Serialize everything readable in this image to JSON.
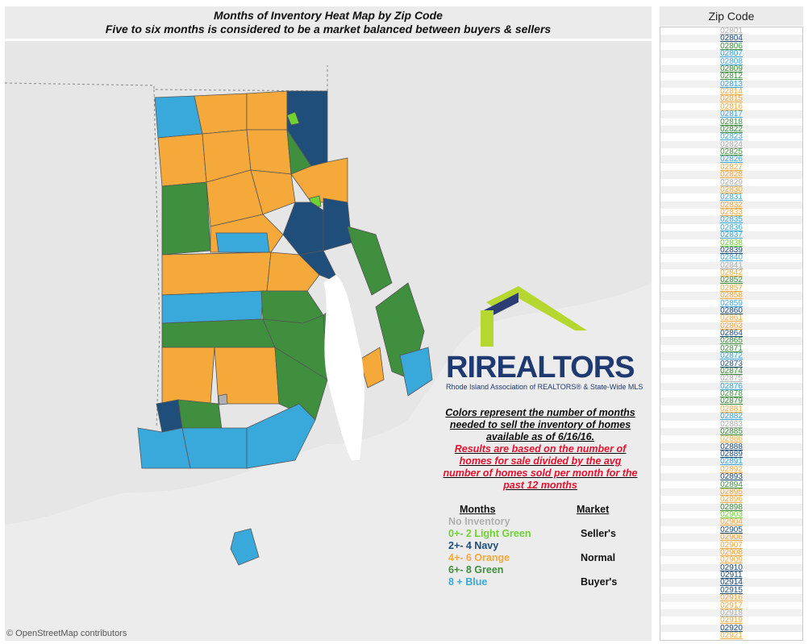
{
  "header": {
    "title": "Months of Inventory Heat Map by Zip Code",
    "subtitle": "Five to six months is considered to be a market balanced between buyers & sellers"
  },
  "map": {
    "attribution": "© OpenStreetMap contributors"
  },
  "logo": {
    "brand": "RIREALTORS",
    "tagline": "Rhode Island Association of REALTORS® & State-Wide MLS"
  },
  "note": {
    "line_black": "Colors represent the number of months needed to sell the inventory of homes available as of 6/16/16.",
    "line_red": "Results are based on the number of homes for sale divided by the avg number of homes sold per month for the past 12 months"
  },
  "legend": {
    "months_header": "Months",
    "market_header": "Market",
    "rows": [
      {
        "label": "No Inventory",
        "color": "#b0b0b0"
      },
      {
        "label": "0+- 2 Light Green",
        "color": "#6fd232"
      },
      {
        "label": "2+- 4 Navy",
        "color": "#1f4e7a"
      },
      {
        "label": "4+- 6 Orange",
        "color": "#f6a93b"
      },
      {
        "label": "6+- 8 Green",
        "color": "#3f8f3f"
      },
      {
        "label": "8 +     Blue",
        "color": "#39a9dc"
      }
    ],
    "markets": [
      "Seller's",
      "Normal",
      "Buyer's"
    ]
  },
  "colors": {
    "none": "#b0b0b0",
    "lightgreen": "#6fd232",
    "navy": "#1f4e7a",
    "orange": "#f6a93b",
    "green": "#3f8f3f",
    "blue": "#39a9dc"
  },
  "zip_panel": {
    "title": "Zip Code",
    "zips": [
      {
        "zip": "02801",
        "c": "none"
      },
      {
        "zip": "02804",
        "c": "navy"
      },
      {
        "zip": "02806",
        "c": "green"
      },
      {
        "zip": "02807",
        "c": "blue"
      },
      {
        "zip": "02808",
        "c": "blue"
      },
      {
        "zip": "02809",
        "c": "green"
      },
      {
        "zip": "02812",
        "c": "green"
      },
      {
        "zip": "02813",
        "c": "blue"
      },
      {
        "zip": "02814",
        "c": "orange"
      },
      {
        "zip": "02815",
        "c": "orange"
      },
      {
        "zip": "02816",
        "c": "orange"
      },
      {
        "zip": "02817",
        "c": "blue"
      },
      {
        "zip": "02818",
        "c": "green"
      },
      {
        "zip": "02822",
        "c": "green"
      },
      {
        "zip": "02823",
        "c": "blue"
      },
      {
        "zip": "02824",
        "c": "none"
      },
      {
        "zip": "02825",
        "c": "green"
      },
      {
        "zip": "02826",
        "c": "blue"
      },
      {
        "zip": "02827",
        "c": "orange"
      },
      {
        "zip": "02828",
        "c": "orange"
      },
      {
        "zip": "02829",
        "c": "none"
      },
      {
        "zip": "02830",
        "c": "orange"
      },
      {
        "zip": "02831",
        "c": "blue"
      },
      {
        "zip": "02832",
        "c": "orange"
      },
      {
        "zip": "02833",
        "c": "orange"
      },
      {
        "zip": "02835",
        "c": "blue"
      },
      {
        "zip": "02836",
        "c": "blue"
      },
      {
        "zip": "02837",
        "c": "blue"
      },
      {
        "zip": "02838",
        "c": "lightgreen"
      },
      {
        "zip": "02839",
        "c": "navy"
      },
      {
        "zip": "02840",
        "c": "blue"
      },
      {
        "zip": "02841",
        "c": "none"
      },
      {
        "zip": "02842",
        "c": "orange"
      },
      {
        "zip": "02852",
        "c": "green"
      },
      {
        "zip": "02857",
        "c": "orange"
      },
      {
        "zip": "02858",
        "c": "orange"
      },
      {
        "zip": "02859",
        "c": "blue"
      },
      {
        "zip": "02860",
        "c": "navy"
      },
      {
        "zip": "02861",
        "c": "orange"
      },
      {
        "zip": "02863",
        "c": "orange"
      },
      {
        "zip": "02864",
        "c": "navy"
      },
      {
        "zip": "02865",
        "c": "green"
      },
      {
        "zip": "02871",
        "c": "green"
      },
      {
        "zip": "02872",
        "c": "blue"
      },
      {
        "zip": "02873",
        "c": "navy"
      },
      {
        "zip": "02874",
        "c": "green"
      },
      {
        "zip": "02875",
        "c": "none"
      },
      {
        "zip": "02876",
        "c": "blue"
      },
      {
        "zip": "02878",
        "c": "green"
      },
      {
        "zip": "02879",
        "c": "green"
      },
      {
        "zip": "02881",
        "c": "orange"
      },
      {
        "zip": "02882",
        "c": "blue"
      },
      {
        "zip": "02883",
        "c": "none"
      },
      {
        "zip": "02885",
        "c": "green"
      },
      {
        "zip": "02886",
        "c": "orange"
      },
      {
        "zip": "02888",
        "c": "navy"
      },
      {
        "zip": "02889",
        "c": "navy"
      },
      {
        "zip": "02891",
        "c": "blue"
      },
      {
        "zip": "02892",
        "c": "orange"
      },
      {
        "zip": "02893",
        "c": "navy"
      },
      {
        "zip": "02894",
        "c": "green"
      },
      {
        "zip": "02895",
        "c": "orange"
      },
      {
        "zip": "02896",
        "c": "orange"
      },
      {
        "zip": "02898",
        "c": "green"
      },
      {
        "zip": "02903",
        "c": "lightgreen"
      },
      {
        "zip": "02904",
        "c": "orange"
      },
      {
        "zip": "02905",
        "c": "navy"
      },
      {
        "zip": "02906",
        "c": "orange"
      },
      {
        "zip": "02907",
        "c": "orange"
      },
      {
        "zip": "02908",
        "c": "orange"
      },
      {
        "zip": "02909",
        "c": "orange"
      },
      {
        "zip": "02910",
        "c": "navy"
      },
      {
        "zip": "02911",
        "c": "navy"
      },
      {
        "zip": "02914",
        "c": "navy"
      },
      {
        "zip": "02915",
        "c": "navy"
      },
      {
        "zip": "02916",
        "c": "orange"
      },
      {
        "zip": "02917",
        "c": "orange"
      },
      {
        "zip": "02918",
        "c": "none"
      },
      {
        "zip": "02919",
        "c": "orange"
      },
      {
        "zip": "02920",
        "c": "navy"
      },
      {
        "zip": "02921",
        "c": "orange"
      }
    ]
  }
}
